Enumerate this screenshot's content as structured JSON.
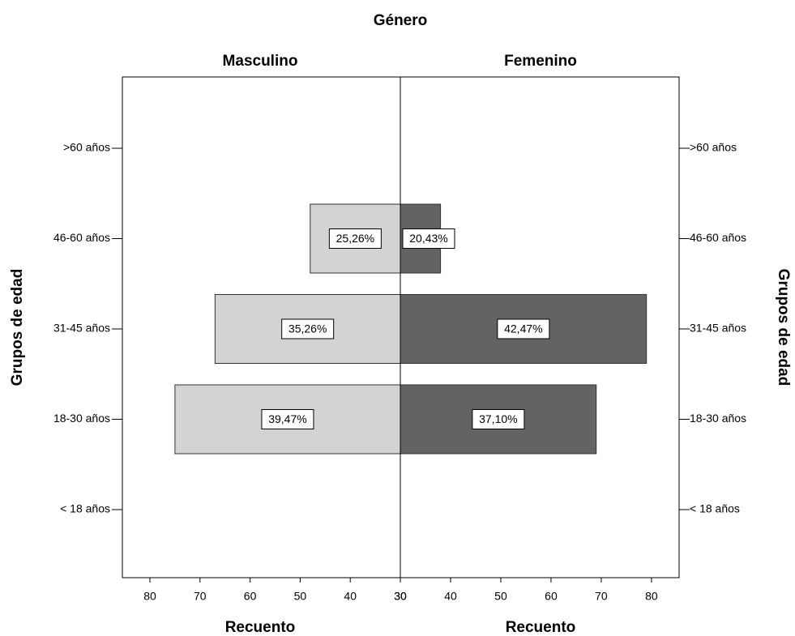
{
  "chart_data": {
    "type": "pyramid",
    "title": "Género",
    "categories": [
      "< 18 años",
      "18-30 años",
      "31-45 años",
      "46-60 años",
      ">60 años"
    ],
    "y_label": "Grupos de edad",
    "x_label": "Recuento",
    "xlim": [
      30,
      85.5
    ],
    "xticks": [
      30,
      40,
      50,
      60,
      70,
      80
    ],
    "series": [
      {
        "name": "Masculino",
        "color": "#d3d3d3",
        "values": [
          null,
          75,
          67,
          48,
          null
        ],
        "share_labels": [
          null,
          "39,47%",
          "35,26%",
          "25,26%",
          null
        ]
      },
      {
        "name": "Femenino",
        "color": "#636363",
        "values": [
          null,
          69,
          79,
          38,
          null
        ],
        "share_labels": [
          null,
          "37,10%",
          "42,47%",
          "20,43%",
          null
        ]
      }
    ]
  }
}
